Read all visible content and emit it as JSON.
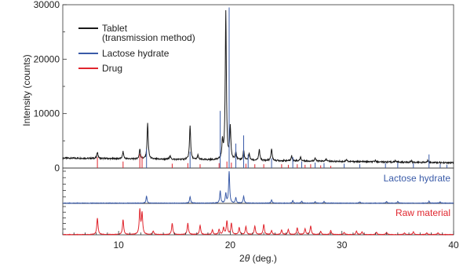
{
  "chart_data": {
    "type": "line",
    "xlabel_prefix": "2",
    "xlabel_theta": "θ",
    "xlabel_unit": " (deg.)",
    "ylabel": "Intensity (counts)",
    "xlim": [
      5,
      40
    ],
    "ylim": [
      0,
      30000
    ],
    "xticks": [
      "10",
      "20",
      "30",
      "40"
    ],
    "yticks": [
      "0",
      "10000",
      "20000",
      "30000"
    ],
    "grid": false,
    "legend_position": "top-left",
    "legend": [
      {
        "name": "Tablet",
        "name_line2": "(transmission method)",
        "color": "#1a1a1a"
      },
      {
        "name": "Lactose hydrate",
        "color": "#3a5ba8"
      },
      {
        "name": "Drug",
        "color": "#e0262e"
      }
    ],
    "panels": [
      {
        "label": "Lactose hydrate",
        "color": "#3a5ba8"
      },
      {
        "label": "Raw material",
        "color": "#e0262e"
      }
    ],
    "series": [
      {
        "name": "Tablet",
        "color": "#1a1a1a",
        "baseline": 1600,
        "peaks": [
          [
            8.1,
            1200
          ],
          [
            10.4,
            1300
          ],
          [
            11.9,
            1800
          ],
          [
            12.6,
            6600
          ],
          [
            14.6,
            700
          ],
          [
            16.4,
            6300
          ],
          [
            17.1,
            800
          ],
          [
            19.3,
            3300
          ],
          [
            19.6,
            27300
          ],
          [
            20.0,
            5900
          ],
          [
            20.5,
            1500
          ],
          [
            21.2,
            1800
          ],
          [
            21.7,
            1200
          ],
          [
            22.6,
            2000
          ],
          [
            23.7,
            2200
          ],
          [
            25.5,
            900
          ],
          [
            26.3,
            700
          ],
          [
            27.6,
            600
          ],
          [
            28.6,
            400
          ],
          [
            30.4,
            400
          ],
          [
            33.0,
            300
          ],
          [
            34.8,
            300
          ],
          [
            36.2,
            300
          ],
          [
            37.7,
            400
          ]
        ]
      },
      {
        "name": "Drug (reference ticks)",
        "color": "#e0262e",
        "ticks": [
          [
            8.1,
            2000
          ],
          [
            10.4,
            1200
          ],
          [
            11.9,
            2600
          ],
          [
            12.1,
            2200
          ],
          [
            14.8,
            800
          ],
          [
            16.2,
            900
          ],
          [
            17.3,
            700
          ],
          [
            19.0,
            900
          ],
          [
            19.7,
            1200
          ],
          [
            20.1,
            1000
          ],
          [
            21.4,
            800
          ],
          [
            22.2,
            700
          ],
          [
            23.0,
            700
          ],
          [
            24.6,
            700
          ],
          [
            25.2,
            600
          ],
          [
            26.0,
            700
          ],
          [
            26.7,
            600
          ],
          [
            27.2,
            700
          ],
          [
            28.1,
            500
          ],
          [
            29.0,
            400
          ]
        ]
      },
      {
        "name": "Lactose hydrate (reference ticks)",
        "color": "#3a5ba8",
        "ticks": [
          [
            12.5,
            3500
          ],
          [
            16.4,
            3000
          ],
          [
            19.1,
            10500
          ],
          [
            19.9,
            29500
          ],
          [
            20.5,
            4500
          ],
          [
            21.2,
            6000
          ],
          [
            21.6,
            2500
          ],
          [
            23.7,
            1800
          ],
          [
            25.6,
            2000
          ],
          [
            26.4,
            1200
          ],
          [
            27.6,
            1000
          ],
          [
            28.4,
            900
          ],
          [
            30.2,
            800
          ],
          [
            31.6,
            700
          ],
          [
            33.9,
            900
          ],
          [
            35.0,
            1000
          ],
          [
            36.4,
            900
          ],
          [
            37.8,
            2500
          ],
          [
            38.8,
            700
          ],
          [
            39.4,
            600
          ]
        ]
      },
      {
        "name": "Lactose hydrate",
        "color": "#3a5ba8",
        "peaks": [
          [
            12.5,
            0.22
          ],
          [
            16.4,
            0.2
          ],
          [
            19.1,
            0.38
          ],
          [
            19.6,
            0.3
          ],
          [
            19.9,
            1.0
          ],
          [
            20.5,
            0.17
          ],
          [
            21.2,
            0.22
          ],
          [
            23.7,
            0.1
          ],
          [
            25.6,
            0.08
          ],
          [
            26.4,
            0.06
          ],
          [
            27.6,
            0.05
          ],
          [
            28.4,
            0.05
          ],
          [
            31.6,
            0.04
          ],
          [
            34.0,
            0.05
          ],
          [
            35.0,
            0.05
          ],
          [
            37.8,
            0.06
          ],
          [
            38.8,
            0.04
          ]
        ]
      },
      {
        "name": "Raw material",
        "color": "#e0262e",
        "peaks": [
          [
            8.1,
            0.58
          ],
          [
            10.4,
            0.52
          ],
          [
            11.9,
            0.86
          ],
          [
            12.1,
            0.74
          ],
          [
            13.1,
            0.12
          ],
          [
            14.8,
            0.4
          ],
          [
            16.2,
            0.4
          ],
          [
            17.3,
            0.32
          ],
          [
            18.4,
            0.16
          ],
          [
            19.0,
            0.18
          ],
          [
            19.4,
            0.24
          ],
          [
            19.7,
            0.48
          ],
          [
            20.1,
            0.4
          ],
          [
            20.8,
            0.24
          ],
          [
            21.4,
            0.28
          ],
          [
            22.2,
            0.3
          ],
          [
            23.0,
            0.36
          ],
          [
            23.7,
            0.14
          ],
          [
            24.6,
            0.16
          ],
          [
            25.2,
            0.18
          ],
          [
            26.0,
            0.24
          ],
          [
            26.7,
            0.2
          ],
          [
            27.2,
            0.3
          ],
          [
            28.1,
            0.12
          ],
          [
            29.0,
            0.14
          ],
          [
            30.2,
            0.08
          ],
          [
            31.3,
            0.12
          ],
          [
            31.8,
            0.1
          ],
          [
            33.1,
            0.08
          ],
          [
            34.0,
            0.08
          ],
          [
            35.6,
            0.06
          ],
          [
            36.4,
            0.1
          ],
          [
            37.6,
            0.06
          ],
          [
            38.6,
            0.06
          ]
        ]
      }
    ]
  }
}
